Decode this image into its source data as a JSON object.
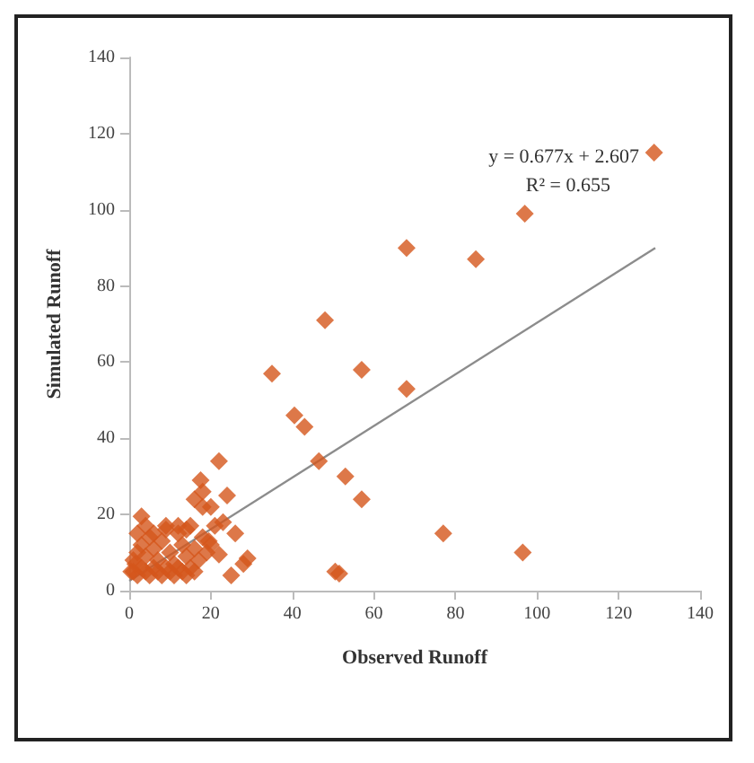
{
  "chart_data": {
    "type": "scatter",
    "xlabel": "Observed Runoff",
    "ylabel": "Simulated Runoff",
    "annotations": [
      "y = 0.677x + 2.607",
      "R² = 0.655"
    ],
    "xlim": [
      0,
      140
    ],
    "xticks": [
      0,
      20,
      40,
      60,
      80,
      100,
      120,
      140
    ],
    "ylim": [
      0,
      140
    ],
    "yticks": [
      0,
      20,
      40,
      60,
      80,
      100,
      120,
      140
    ],
    "grid": false,
    "marker": "diamond",
    "series": [
      {
        "color": "#d4561c",
        "x": [
          1,
          2,
          3,
          4,
          5,
          6,
          7,
          8,
          9,
          10,
          11,
          12,
          13,
          14,
          15,
          16,
          1,
          2,
          3,
          4,
          5,
          6,
          7,
          8,
          9,
          10,
          11,
          12,
          13,
          14,
          15,
          16,
          17,
          18,
          19,
          20,
          2,
          4,
          6,
          3,
          9,
          12,
          14,
          0.5,
          1.5,
          22,
          19.5,
          18,
          20,
          17.5,
          22,
          24,
          26,
          29,
          28,
          25,
          21,
          23,
          16,
          18,
          128.7,
          97,
          68,
          85,
          48,
          57,
          68,
          35,
          40.5,
          43,
          46.5,
          53,
          57,
          77,
          96.5,
          50.5,
          51.5
        ],
        "values": [
          5,
          4,
          6,
          5,
          4,
          6,
          5,
          4,
          6,
          5,
          4,
          6,
          5,
          4,
          6,
          5,
          8,
          10,
          12,
          9,
          14,
          11,
          8,
          13,
          16,
          10,
          7,
          15,
          12,
          9,
          17,
          11,
          8,
          14,
          10,
          12,
          15,
          17,
          15,
          19.5,
          17,
          17,
          16,
          5,
          7,
          9.5,
          13,
          22,
          22,
          29,
          34,
          25,
          15,
          8.5,
          7,
          4,
          17,
          18,
          24,
          26,
          115,
          99,
          90,
          87,
          71,
          58,
          53,
          57,
          46,
          43,
          34,
          30,
          24,
          15,
          10,
          5,
          4.5
        ]
      },
      {
        "type": "line",
        "color": "#8c8c8c",
        "x": [
          0,
          129
        ],
        "values": [
          2.6,
          90
        ],
        "marker": "none"
      }
    ]
  }
}
